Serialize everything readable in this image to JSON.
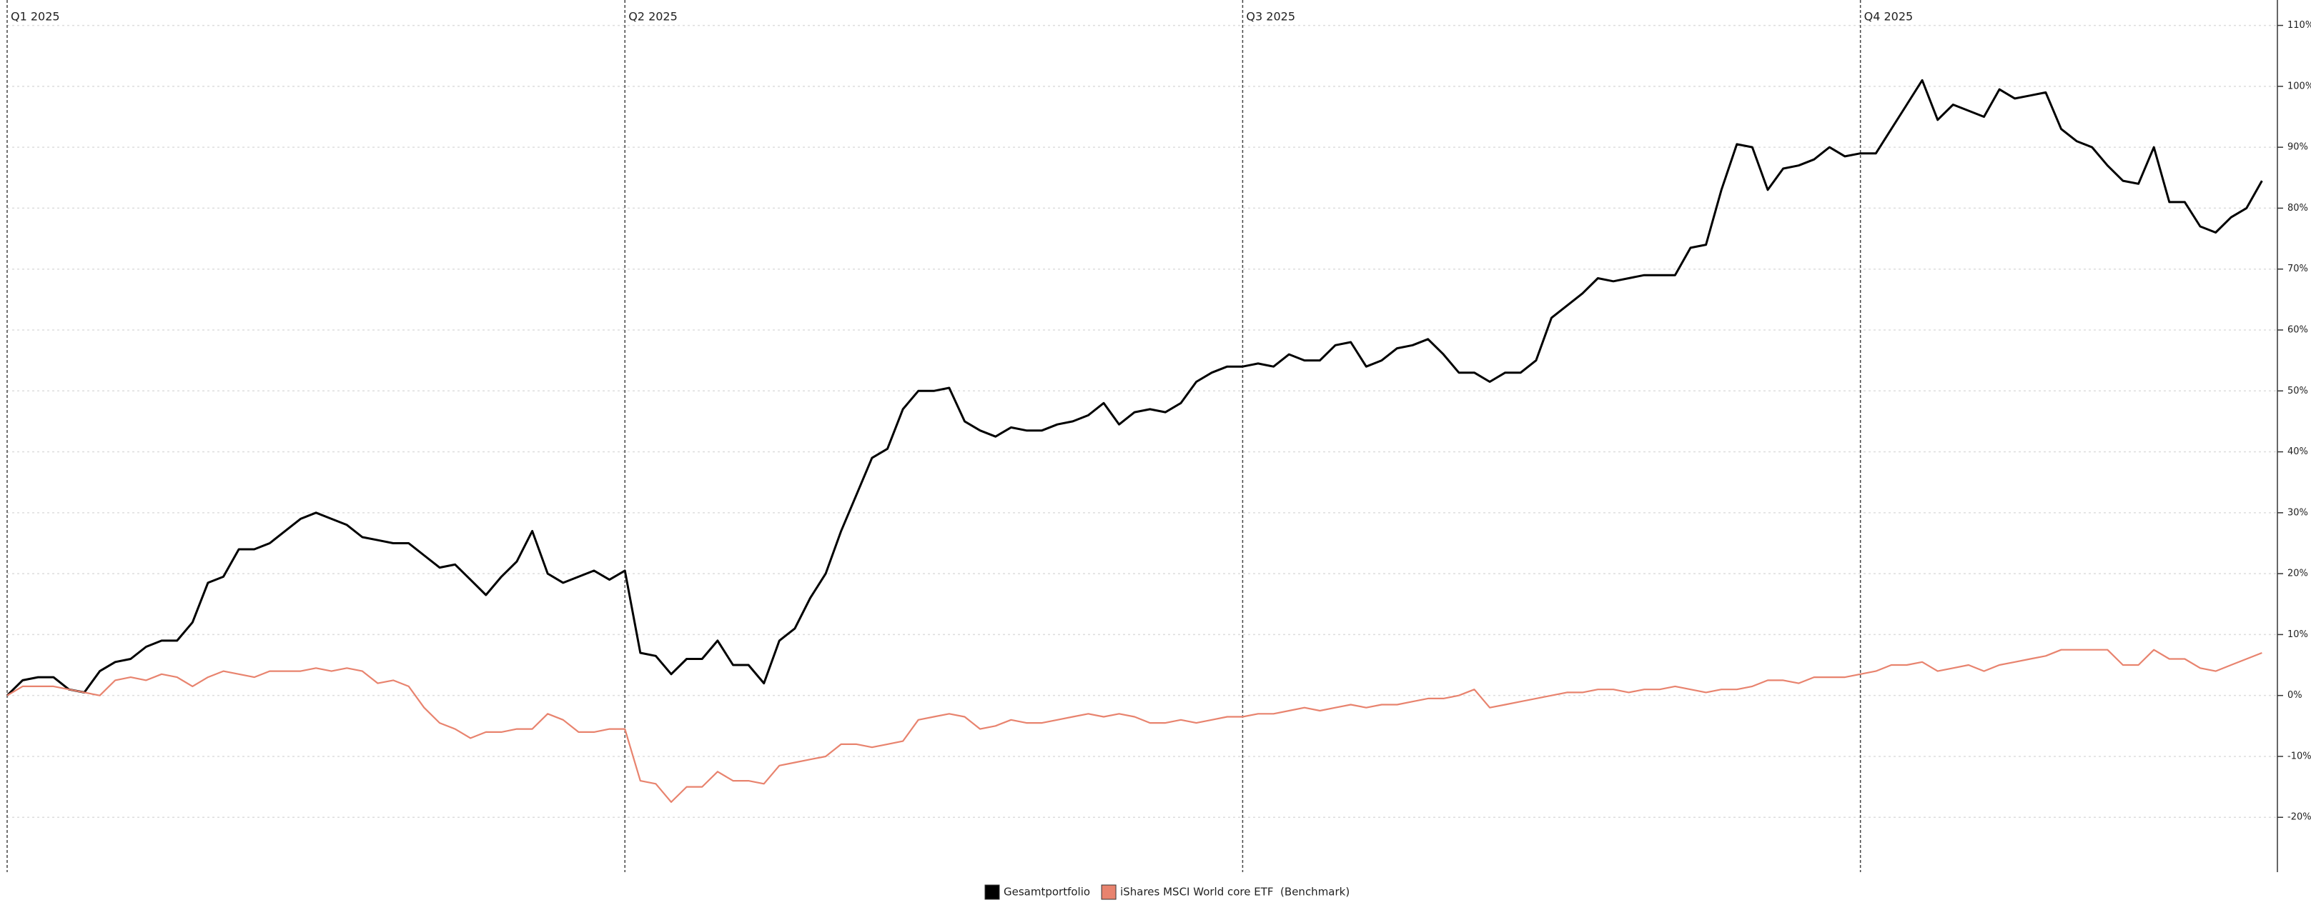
{
  "chart_data": {
    "type": "line",
    "categories": [
      "Q1 2025",
      null,
      null,
      null,
      null,
      null,
      null,
      null,
      null,
      null,
      null,
      null,
      null,
      null,
      null,
      null,
      null,
      null,
      null,
      null,
      null,
      null,
      null,
      null,
      null,
      null,
      null,
      null,
      null,
      null,
      null,
      null,
      null,
      null,
      null,
      null,
      null,
      null,
      null,
      null,
      "Q2 2025",
      null,
      null,
      null,
      null,
      null,
      null,
      null,
      null,
      null,
      null,
      null,
      null,
      null,
      null,
      null,
      null,
      null,
      null,
      null,
      null,
      null,
      null,
      null,
      null,
      null,
      null,
      null,
      null,
      null,
      null,
      null,
      null,
      null,
      null,
      null,
      null,
      null,
      null,
      null,
      "Q3 2025",
      null,
      null,
      null,
      null,
      null,
      null,
      null,
      null,
      null,
      null,
      null,
      null,
      null,
      null,
      null,
      null,
      null,
      null,
      null,
      null,
      null,
      null,
      null,
      null,
      null,
      null,
      null,
      null,
      null,
      null,
      null,
      null,
      null,
      null,
      null,
      null,
      null,
      null,
      null,
      "Q4 2025",
      null,
      null,
      null,
      null,
      null,
      null,
      null,
      null,
      null,
      null,
      null,
      null,
      null,
      null,
      null,
      null,
      null,
      null,
      null,
      null,
      null,
      null,
      null,
      null,
      null,
      null
    ],
    "series": [
      {
        "name": "Gesamtportfolio",
        "color": "#000000",
        "values": [
          0,
          2.5,
          3,
          3,
          1,
          0.5,
          4,
          5.5,
          6,
          8,
          9,
          9,
          12,
          18.5,
          19.5,
          24,
          24,
          25,
          27,
          29,
          30,
          29,
          28,
          26,
          25.5,
          25,
          25,
          23,
          21,
          21.5,
          19,
          16.5,
          19.5,
          22,
          27,
          20,
          18.5,
          19.5,
          20.5,
          19,
          20.5,
          7,
          6.5,
          3.5,
          6,
          6,
          9,
          5,
          5,
          2,
          9,
          11,
          16,
          20,
          27,
          33,
          39,
          40.5,
          47,
          50,
          50,
          50.5,
          45,
          43.5,
          42.5,
          44,
          43.5,
          43.5,
          44.5,
          45,
          46,
          48,
          44.5,
          46.5,
          47,
          46.5,
          48,
          51.5,
          53,
          54,
          54,
          54.5,
          54,
          56,
          55,
          55,
          57.5,
          58,
          54,
          55,
          57,
          57.5,
          58.5,
          56,
          53,
          53,
          51.5,
          53,
          53,
          55,
          62,
          64,
          66,
          68.5,
          68,
          68.5,
          69,
          69,
          69,
          73.5,
          74,
          83,
          90.5,
          90,
          83,
          86.5,
          87,
          88,
          90,
          88.5,
          89,
          89,
          93,
          97,
          101,
          94.5,
          97,
          96,
          95,
          99.5,
          98,
          98.5,
          99,
          93,
          91,
          90,
          87,
          84.5,
          84,
          90,
          81,
          81,
          77,
          76,
          78.5,
          80,
          84.5
        ]
      },
      {
        "name": "iShares MSCI World core ETF  (Benchmark)",
        "color": "#e8836e",
        "values": [
          0,
          1.5,
          1.5,
          1.5,
          1,
          0.5,
          0,
          2.5,
          3,
          2.5,
          3.5,
          3,
          1.5,
          3,
          4,
          3.5,
          3,
          4,
          4,
          4,
          4.5,
          4,
          4.5,
          4,
          2,
          2.5,
          1.5,
          -2,
          -4.5,
          -5.5,
          -7,
          -6,
          -6,
          -5.5,
          -5.5,
          -3,
          -4,
          -6,
          -6,
          -5.5,
          -5.5,
          -14,
          -14.5,
          -17.5,
          -15,
          -15,
          -12.5,
          -14,
          -14,
          -14.5,
          -11.5,
          -11,
          -10.5,
          -10,
          -8,
          -8,
          -8.5,
          -8,
          -7.5,
          -4,
          -3.5,
          -3,
          -3.5,
          -5.5,
          -5,
          -4,
          -4.5,
          -4.5,
          -4,
          -3.5,
          -3,
          -3.5,
          -3,
          -3.5,
          -4.5,
          -4.5,
          -4,
          -4.5,
          -4,
          -3.5,
          -3.5,
          -3,
          -3,
          -2.5,
          -2,
          -2.5,
          -2,
          -1.5,
          -2,
          -1.5,
          -1.5,
          -1,
          -0.5,
          -0.5,
          0,
          1,
          -2,
          -1.5,
          -1,
          -0.5,
          0,
          0.5,
          0.5,
          1,
          1,
          0.5,
          1,
          1,
          1.5,
          1,
          0.5,
          1,
          1,
          1.5,
          2.5,
          2.5,
          2,
          3,
          3,
          3,
          3.5,
          4,
          5,
          5,
          5.5,
          4,
          4.5,
          5,
          4,
          5,
          5.5,
          6,
          6.5,
          7.5,
          7.5,
          7.5,
          7.5,
          5,
          5,
          7.5,
          6,
          6,
          4.5,
          4,
          5,
          6,
          7
        ]
      }
    ],
    "ylim": [
      -29,
      113
    ],
    "yticks": [
      {
        "value": 110,
        "label": "110%"
      },
      {
        "value": 100,
        "label": "100%"
      },
      {
        "value": 90,
        "label": "90%"
      },
      {
        "value": 80,
        "label": "80%"
      },
      {
        "value": 70,
        "label": "70%"
      },
      {
        "value": 60,
        "label": "60%"
      },
      {
        "value": 50,
        "label": "50%"
      },
      {
        "value": 40,
        "label": "40%"
      },
      {
        "value": 30,
        "label": "30%"
      },
      {
        "value": 20,
        "label": "20%"
      },
      {
        "value": 10,
        "label": "10%"
      },
      {
        "value": 0,
        "label": "0%"
      },
      {
        "value": -10,
        "label": "-10%"
      },
      {
        "value": -20,
        "label": "-20%"
      }
    ],
    "grid": true,
    "legend": "bottom"
  }
}
